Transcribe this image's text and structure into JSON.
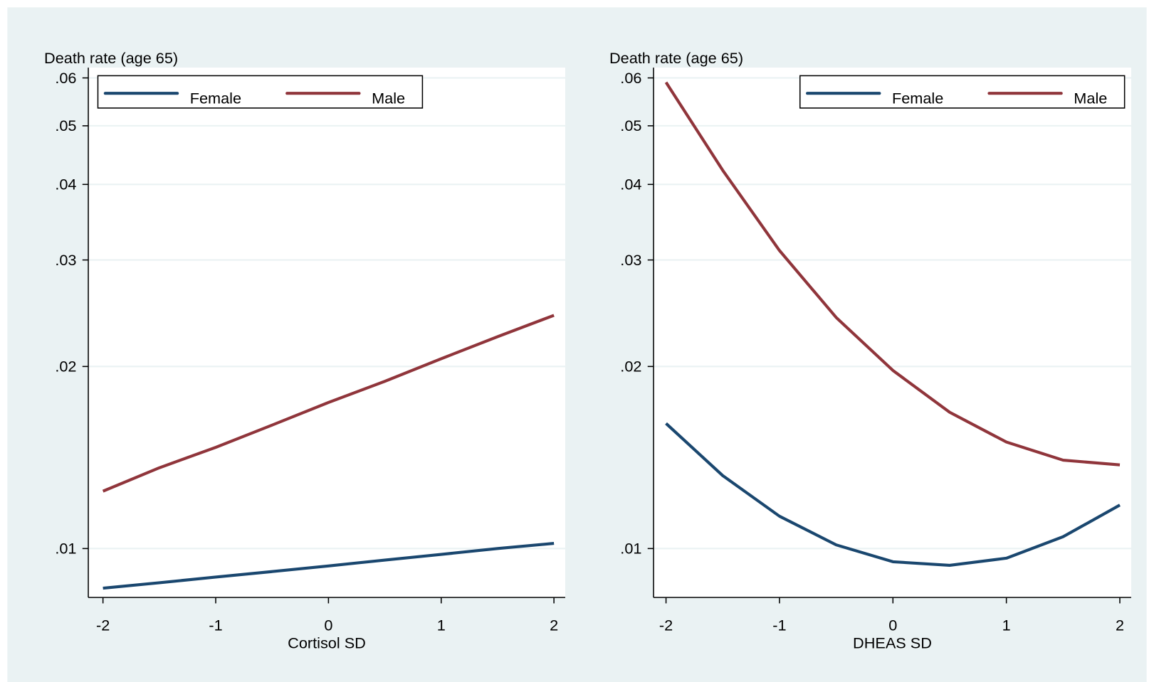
{
  "chart_data": [
    {
      "type": "line",
      "y_label": "Death rate (age 65)",
      "x_label": "Cortisol SD",
      "x": [
        -2,
        -1.5,
        -1,
        -0.5,
        0,
        0.5,
        1,
        1.5,
        2
      ],
      "series": [
        {
          "name": "Female",
          "color": "#1a476f",
          "values": [
            0.0086,
            0.00878,
            0.00897,
            0.00916,
            0.00936,
            0.00957,
            0.00978,
            0.01,
            0.0102
          ]
        },
        {
          "name": "Male",
          "color": "#90353b",
          "values": [
            0.01244,
            0.0136,
            0.0147,
            0.016,
            0.01744,
            0.0189,
            0.0206,
            0.0224,
            0.0243
          ]
        }
      ],
      "xlim": [
        -2.13,
        2.1
      ],
      "xticks": [
        -2,
        -1,
        0,
        1,
        2
      ],
      "ylim": [
        0.0083,
        0.0624
      ],
      "log_scale": true,
      "grid": true,
      "legend": "top-left",
      "yticks": [
        {
          "value": 0.01,
          "label": ".01"
        },
        {
          "value": 0.02,
          "label": ".02"
        },
        {
          "value": 0.03,
          "label": ".03"
        },
        {
          "value": 0.04,
          "label": ".04"
        },
        {
          "value": 0.05,
          "label": ".05"
        },
        {
          "value": 0.06,
          "label": ".06"
        }
      ]
    },
    {
      "type": "line",
      "y_label": "Death rate (age 65)",
      "x_label": "DHEAS SD",
      "x": [
        -2,
        -1.5,
        -1,
        -0.5,
        0,
        0.5,
        1,
        1.5,
        2
      ],
      "series": [
        {
          "name": "Female",
          "color": "#1a476f",
          "values": [
            0.0161,
            0.0132,
            0.01131,
            0.01014,
            0.00951,
            0.00938,
            0.00964,
            0.01046,
            0.0118
          ]
        },
        {
          "name": "Male",
          "color": "#90353b",
          "values": [
            0.059,
            0.0422,
            0.0311,
            0.0241,
            0.0197,
            0.0168,
            0.015,
            0.014,
            0.01375
          ]
        }
      ],
      "xlim": [
        -2.11,
        2.1
      ],
      "xticks": [
        -2,
        -1,
        0,
        1,
        2
      ],
      "ylim": [
        0.0083,
        0.0624
      ],
      "log_scale": true,
      "grid": true,
      "legend": "top-right",
      "yticks": [
        {
          "value": 0.01,
          "label": ".01"
        },
        {
          "value": 0.02,
          "label": ".02"
        },
        {
          "value": 0.03,
          "label": ".03"
        },
        {
          "value": 0.04,
          "label": ".04"
        },
        {
          "value": 0.05,
          "label": ".05"
        },
        {
          "value": 0.06,
          "label": ".06"
        }
      ]
    }
  ]
}
